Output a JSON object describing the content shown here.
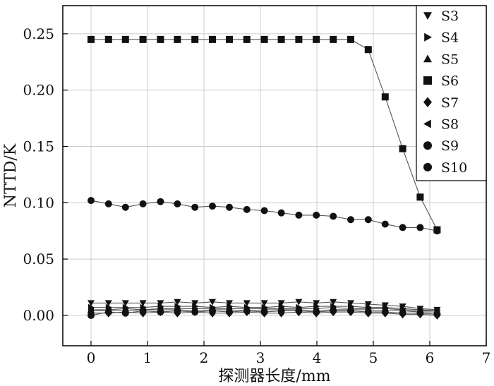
{
  "chart_data": {
    "type": "line",
    "title": "",
    "xlabel": "探测器长度/mm",
    "ylabel": "NTTD/K",
    "xlim": [
      -0.5,
      7
    ],
    "ylim": [
      -0.027,
      0.275
    ],
    "xticks": [
      0,
      1,
      2,
      3,
      4,
      5,
      6,
      7
    ],
    "xtick_labels": [
      "0",
      "1",
      "2",
      "3",
      "4",
      "5",
      "6",
      "7"
    ],
    "yticks": [
      0.0,
      0.05,
      0.1,
      0.15,
      0.2,
      0.25
    ],
    "ytick_labels": [
      "0.00",
      "0.05",
      "0.10",
      "0.15",
      "0.20",
      "0.25"
    ],
    "grid": true,
    "legend_position": "top-right",
    "x": [
      0,
      0.31,
      0.61,
      0.92,
      1.23,
      1.53,
      1.84,
      2.15,
      2.45,
      2.76,
      3.07,
      3.37,
      3.68,
      3.99,
      4.29,
      4.6,
      4.91,
      5.21,
      5.52,
      5.83,
      6.13
    ],
    "series": [
      {
        "name": "S3",
        "marker": "triangle-down",
        "values": [
          0.011,
          0.011,
          0.011,
          0.011,
          0.011,
          0.012,
          0.011,
          0.012,
          0.011,
          0.011,
          0.011,
          0.011,
          0.012,
          0.011,
          0.012,
          0.011,
          0.01,
          0.009,
          0.008,
          0.006,
          0.005
        ]
      },
      {
        "name": "S4",
        "marker": "triangle-right",
        "values": [
          0.007,
          0.007,
          0.007,
          0.007,
          0.008,
          0.008,
          0.008,
          0.007,
          0.008,
          0.007,
          0.007,
          0.008,
          0.007,
          0.008,
          0.008,
          0.008,
          0.007,
          0.007,
          0.006,
          0.005,
          0.004
        ]
      },
      {
        "name": "S5",
        "marker": "triangle-up",
        "values": [
          0.005,
          0.005,
          0.006,
          0.005,
          0.006,
          0.006,
          0.006,
          0.006,
          0.006,
          0.006,
          0.006,
          0.006,
          0.006,
          0.006,
          0.007,
          0.006,
          0.006,
          0.006,
          0.005,
          0.004,
          0.004
        ]
      },
      {
        "name": "S6",
        "marker": "square",
        "values": [
          0.245,
          0.245,
          0.245,
          0.245,
          0.245,
          0.245,
          0.245,
          0.245,
          0.245,
          0.245,
          0.245,
          0.245,
          0.245,
          0.245,
          0.245,
          0.245,
          0.236,
          0.194,
          0.148,
          0.105,
          0.076
        ]
      },
      {
        "name": "S7",
        "marker": "diamond",
        "values": [
          0.002,
          0.002,
          0.003,
          0.002,
          0.003,
          0.002,
          0.003,
          0.002,
          0.002,
          0.003,
          0.002,
          0.002,
          0.003,
          0.002,
          0.003,
          0.003,
          0.002,
          0.002,
          0.001,
          0.001,
          0.0
        ]
      },
      {
        "name": "S8",
        "marker": "triangle-left",
        "values": [
          0.004,
          0.004,
          0.004,
          0.005,
          0.005,
          0.005,
          0.004,
          0.005,
          0.005,
          0.004,
          0.005,
          0.005,
          0.005,
          0.004,
          0.005,
          0.005,
          0.005,
          0.004,
          0.004,
          0.003,
          0.003
        ]
      },
      {
        "name": "S9",
        "marker": "circle",
        "values": [
          0.102,
          0.099,
          0.096,
          0.099,
          0.101,
          0.099,
          0.096,
          0.097,
          0.096,
          0.094,
          0.093,
          0.091,
          0.089,
          0.089,
          0.088,
          0.085,
          0.085,
          0.081,
          0.078,
          0.078,
          0.075
        ]
      },
      {
        "name": "S10",
        "marker": "circle",
        "values": [
          0.0,
          0.003,
          0.002,
          0.004,
          0.003,
          0.004,
          0.003,
          0.004,
          0.003,
          0.004,
          0.003,
          0.004,
          0.004,
          0.003,
          0.004,
          0.004,
          0.003,
          0.003,
          0.002,
          0.002,
          0.001
        ]
      }
    ]
  }
}
